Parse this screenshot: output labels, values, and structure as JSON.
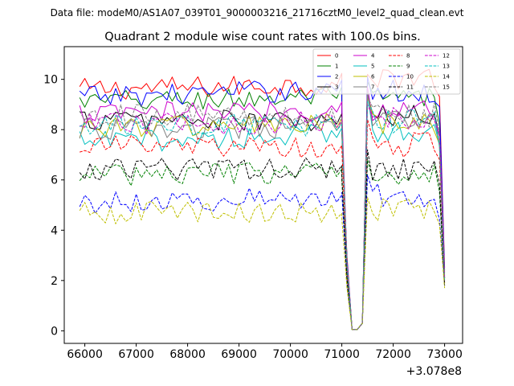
{
  "header": {
    "data_file": "Data file: modeM0/AS1A07_039T01_9000003216_21716cztM0_level2_quad_clean.evt"
  },
  "chart_data": {
    "type": "line",
    "title": "Quadrant 2 module wise count rates with 100.0s bins.",
    "xlabel": "",
    "ylabel": "",
    "x_offset_label": "+3.078e8",
    "xlim": [
      65600,
      73350
    ],
    "ylim": [
      -0.5,
      11.3
    ],
    "xticks": [
      66000,
      67000,
      68000,
      69000,
      70000,
      71000,
      72000,
      73000
    ],
    "xtick_labels": [
      "66000",
      "67000",
      "68000",
      "69000",
      "70000",
      "71000",
      "72000",
      "73000"
    ],
    "yticks": [
      0,
      2,
      4,
      6,
      8,
      10
    ],
    "ytick_labels": [
      "0",
      "2",
      "4",
      "6",
      "8",
      "10"
    ],
    "grid": false,
    "legend_position": "top-right",
    "x_segments": [
      [
        65900,
        71000
      ],
      [
        71100,
        71400
      ],
      [
        71500,
        73000
      ]
    ],
    "series": [
      {
        "name": "0",
        "color": "#ff0000",
        "dash": "solid",
        "levels": [
          9.6,
          9.8,
          10.1
        ],
        "dip": [
          7.8,
          3.0,
          0.05,
          0.3,
          10.2
        ],
        "end": 2.5
      },
      {
        "name": "1",
        "color": "#008000",
        "dash": "solid",
        "levels": [
          9.1,
          9.3,
          9.2
        ],
        "dip": [
          7.9,
          2.8,
          0.05,
          0.3,
          9.9
        ],
        "end": 2.3
      },
      {
        "name": "2",
        "color": "#0000ff",
        "dash": "solid",
        "levels": [
          9.3,
          9.6,
          9.5
        ],
        "dip": [
          8.2,
          2.9,
          0.05,
          0.3,
          10.1
        ],
        "end": 2.4
      },
      {
        "name": "3",
        "color": "#000000",
        "dash": "solid",
        "levels": [
          8.4,
          8.3,
          8.5
        ],
        "dip": [
          8.4,
          2.6,
          0.05,
          0.3,
          9.4
        ],
        "end": 2.1
      },
      {
        "name": "4",
        "color": "#cc00cc",
        "dash": "solid",
        "levels": [
          8.6,
          8.8,
          8.8
        ],
        "dip": [
          8.9,
          2.7,
          0.05,
          0.3,
          9.7
        ],
        "end": 2.2
      },
      {
        "name": "5",
        "color": "#00bfbf",
        "dash": "solid",
        "levels": [
          7.5,
          7.8,
          8.0
        ],
        "dip": [
          8.0,
          2.6,
          0.05,
          0.3,
          9.4
        ],
        "end": 2.1
      },
      {
        "name": "6",
        "color": "#bfbf00",
        "dash": "solid",
        "levels": [
          8.1,
          8.2,
          8.2
        ],
        "dip": [
          8.3,
          2.6,
          0.05,
          0.3,
          9.3
        ],
        "end": 2.1
      },
      {
        "name": "7",
        "color": "#808080",
        "dash": "solid",
        "levels": [
          8.0,
          8.1,
          8.3
        ],
        "dip": [
          8.2,
          2.6,
          0.05,
          0.3,
          9.5
        ],
        "end": 2.0
      },
      {
        "name": "8",
        "color": "#ff0000",
        "dash": "dashed",
        "levels": [
          7.4,
          7.2,
          7.4
        ],
        "dip": [
          7.3,
          2.3,
          0.05,
          0.3,
          8.4
        ],
        "end": 1.9
      },
      {
        "name": "9",
        "color": "#008000",
        "dash": "dashed",
        "levels": [
          6.2,
          6.3,
          6.3
        ],
        "dip": [
          6.0,
          2.1,
          0.05,
          0.3,
          6.8
        ],
        "end": 1.8
      },
      {
        "name": "10",
        "color": "#0000ff",
        "dash": "dashed",
        "levels": [
          5.1,
          5.3,
          5.4
        ],
        "dip": [
          5.5,
          1.9,
          0.05,
          0.3,
          6.2
        ],
        "end": 1.8
      },
      {
        "name": "11",
        "color": "#000000",
        "dash": "dashed",
        "levels": [
          6.4,
          6.5,
          6.4
        ],
        "dip": [
          6.2,
          2.1,
          0.05,
          0.3,
          7.2
        ],
        "end": 1.8
      },
      {
        "name": "12",
        "color": "#cc00cc",
        "dash": "dashed",
        "levels": [
          8.2,
          8.3,
          8.5
        ],
        "dip": [
          8.4,
          2.7,
          0.05,
          0.3,
          9.0
        ],
        "end": 2.1
      },
      {
        "name": "13",
        "color": "#00bfbf",
        "dash": "dashed",
        "levels": [
          8.1,
          8.2,
          8.3
        ],
        "dip": [
          8.2,
          2.6,
          0.05,
          0.3,
          9.1
        ],
        "end": 2.0
      },
      {
        "name": "14",
        "color": "#bfbf00",
        "dash": "dashed",
        "levels": [
          4.7,
          4.7,
          4.8
        ],
        "dip": [
          4.5,
          1.7,
          0.05,
          0.3,
          5.3
        ],
        "end": 1.7
      },
      {
        "name": "15",
        "color": "#808080",
        "dash": "dashed",
        "levels": [
          8.6,
          8.5,
          8.6
        ],
        "dip": [
          8.5,
          2.7,
          0.05,
          0.3,
          9.3
        ],
        "end": 2.1
      }
    ]
  }
}
